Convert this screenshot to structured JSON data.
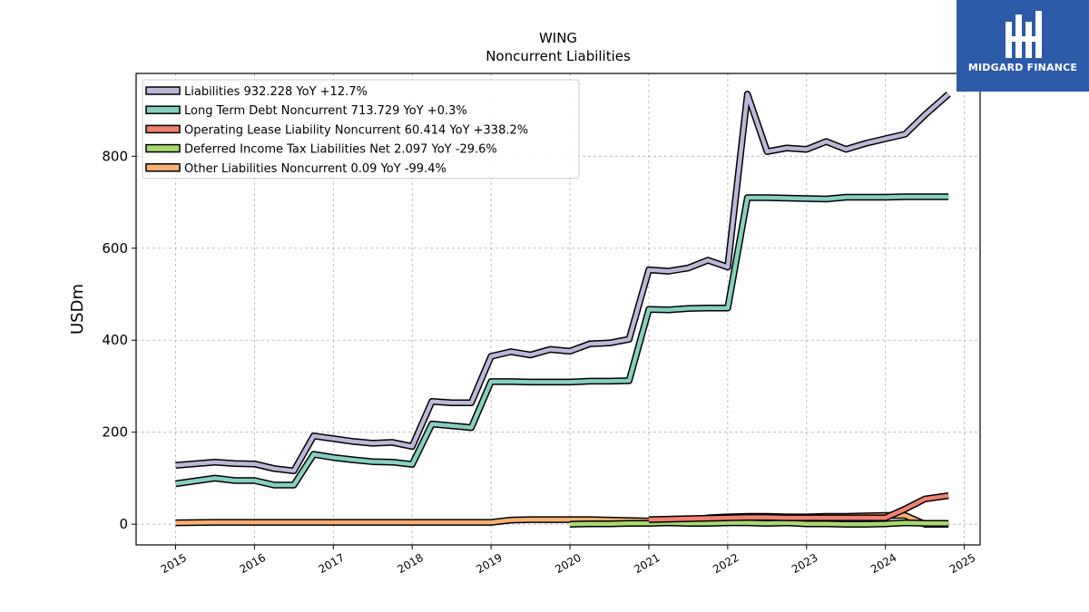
{
  "brand": {
    "name": "MIDGARD FINANCE",
    "color": "#2d5aa8"
  },
  "chart_data": {
    "type": "line",
    "title": "WING",
    "subtitle": "Noncurrent  Liabilities",
    "xlabel": "",
    "ylabel": "USDm",
    "xlim": [
      2014.5,
      2025.2
    ],
    "ylim": [
      -45,
      980
    ],
    "x_ticks": [
      "2015",
      "2016",
      "2017",
      "2018",
      "2019",
      "2020",
      "2021",
      "2022",
      "2023",
      "2024",
      "2025"
    ],
    "y_ticks": [
      0,
      200,
      400,
      600,
      800
    ],
    "grid": true,
    "legend_position": "top-left",
    "series": [
      {
        "name": "Liabilities  932.228 YoY +12.7%",
        "color": "#bcb8d8",
        "x": [
          2015.0,
          2015.5,
          2015.75,
          2016.0,
          2016.25,
          2016.5,
          2016.75,
          2017.0,
          2017.25,
          2017.5,
          2017.75,
          2018.0,
          2018.25,
          2018.5,
          2018.75,
          2019.0,
          2019.25,
          2019.5,
          2019.75,
          2020.0,
          2020.25,
          2020.5,
          2020.75,
          2021.0,
          2021.25,
          2021.5,
          2021.75,
          2022.0,
          2022.25,
          2022.5,
          2022.75,
          2023.0,
          2023.25,
          2023.5,
          2023.75,
          2024.0,
          2024.25,
          2024.5,
          2024.8
        ],
        "y": [
          128,
          135,
          132,
          131,
          121,
          116,
          192,
          186,
          180,
          176,
          178,
          169,
          267,
          264,
          264,
          365,
          375,
          368,
          380,
          376,
          392,
          394,
          402,
          553,
          550,
          557,
          574,
          559,
          935,
          810,
          818,
          815,
          832,
          815,
          828,
          838,
          848,
          890,
          935
        ]
      },
      {
        "name": "Long Term Debt Noncurrent  713.729 YoY +0.3%",
        "color": "#86d0c0",
        "x": [
          2015.0,
          2015.5,
          2015.75,
          2016.0,
          2016.25,
          2016.5,
          2016.75,
          2017.0,
          2017.25,
          2017.5,
          2017.75,
          2018.0,
          2018.25,
          2018.5,
          2018.75,
          2019.0,
          2019.25,
          2019.5,
          2019.75,
          2020.0,
          2020.25,
          2020.5,
          2020.75,
          2021.0,
          2021.25,
          2021.5,
          2021.75,
          2022.0,
          2022.25,
          2022.5,
          2022.75,
          2023.0,
          2023.25,
          2023.5,
          2023.75,
          2024.0,
          2024.25,
          2024.5,
          2024.8
        ],
        "y": [
          88,
          100,
          95,
          95,
          85,
          85,
          152,
          145,
          140,
          136,
          135,
          130,
          218,
          214,
          210,
          310,
          310,
          309,
          309,
          309,
          311,
          311,
          312,
          467,
          466,
          469,
          470,
          470,
          710,
          710,
          709,
          708,
          707,
          711,
          711,
          711,
          712,
          712,
          712
        ]
      },
      {
        "name": "Operating Lease Liability Noncurrent  60.414 YoY +338.2%",
        "color": "#f08070",
        "x": [
          2021.0,
          2021.25,
          2021.5,
          2021.75,
          2022.0,
          2022.25,
          2022.5,
          2022.75,
          2023.0,
          2023.25,
          2023.5,
          2023.75,
          2024.0,
          2024.25,
          2024.5,
          2024.8
        ],
        "y": [
          10,
          11,
          12,
          13,
          14,
          15,
          15,
          14,
          14,
          14,
          14,
          14,
          14,
          33,
          55,
          62
        ]
      },
      {
        "name": "Deferred Income Tax Liabilities Net  2.097 YoY -29.6%",
        "color": "#a8d870",
        "x": [
          2020.0,
          2020.25,
          2020.5,
          2020.75,
          2021.0,
          2021.25,
          2021.5,
          2021.75,
          2022.0,
          2022.25,
          2022.5,
          2022.75,
          2023.0,
          2023.25,
          2023.5,
          2023.75,
          2024.0,
          2024.25,
          2024.5,
          2024.8
        ],
        "y": [
          0,
          1,
          1,
          2,
          2,
          3,
          2,
          2,
          3,
          3,
          2,
          3,
          1,
          1,
          0,
          0,
          1,
          3,
          2,
          2
        ]
      },
      {
        "name": "Other Liabilities Noncurrent  0.09 YoY -99.4%",
        "color": "#f8b070",
        "x": [
          2015.0,
          2015.5,
          2016.0,
          2016.5,
          2017.0,
          2017.5,
          2018.0,
          2018.5,
          2019.0,
          2019.25,
          2019.5,
          2019.75,
          2020.0,
          2020.25,
          2020.5,
          2020.75,
          2021.0,
          2021.25,
          2021.5,
          2021.75,
          2022.0,
          2022.25,
          2022.5,
          2022.75,
          2023.0,
          2023.25,
          2023.5,
          2023.75,
          2024.0,
          2024.25,
          2024.5,
          2024.8
        ],
        "y": [
          3,
          4,
          4,
          4,
          4,
          4,
          4,
          4,
          4,
          9,
          10,
          10,
          10,
          10,
          9,
          8,
          7,
          5,
          4,
          14,
          16,
          17,
          17,
          16,
          16,
          17,
          17,
          18,
          19,
          19,
          0,
          0
        ]
      }
    ]
  }
}
